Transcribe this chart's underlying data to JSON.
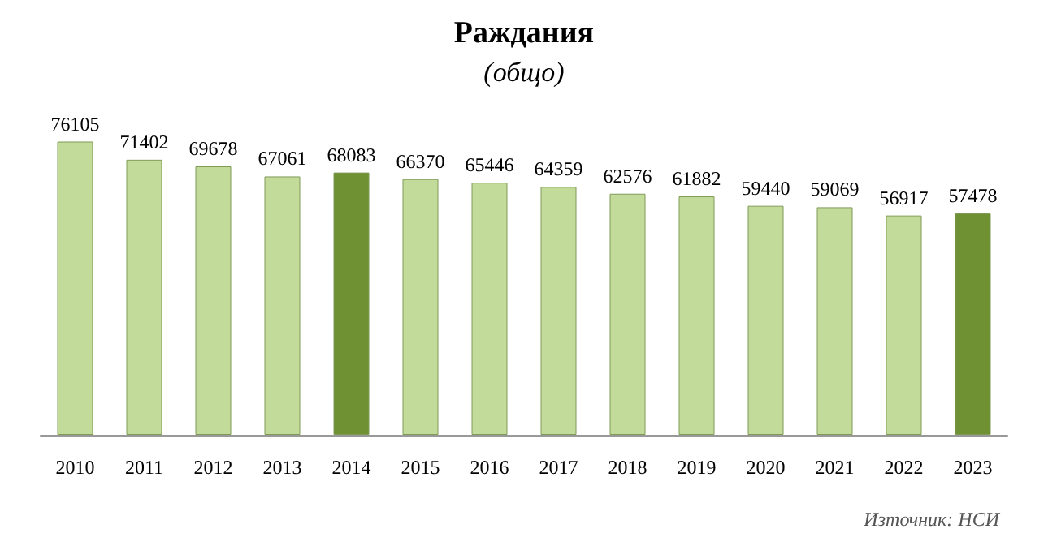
{
  "chart_data": {
    "type": "bar",
    "title": "Раждания",
    "subtitle": "(общо)",
    "categories": [
      "2010",
      "2011",
      "2012",
      "2013",
      "2014",
      "2015",
      "2016",
      "2017",
      "2018",
      "2019",
      "2020",
      "2021",
      "2022",
      "2023"
    ],
    "values": [
      76105,
      71402,
      69678,
      67061,
      68083,
      66370,
      65446,
      64359,
      62576,
      61882,
      59440,
      59069,
      56917,
      57478
    ],
    "colors": [
      "#c3db9a",
      "#c3db9a",
      "#c3db9a",
      "#c3db9a",
      "#6f9134",
      "#c3db9a",
      "#c3db9a",
      "#c3db9a",
      "#c3db9a",
      "#c3db9a",
      "#c3db9a",
      "#c3db9a",
      "#c3db9a",
      "#6f9134"
    ],
    "tick_labels": "x",
    "grid": false,
    "data_labels": true,
    "annotations": [
      "Източник: НСИ"
    ]
  }
}
